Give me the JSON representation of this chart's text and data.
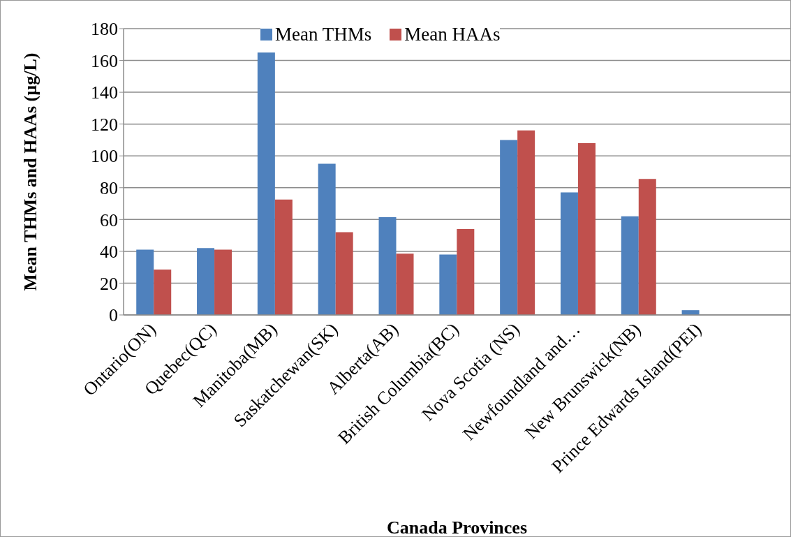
{
  "chart_data": {
    "type": "bar",
    "xlabel": "Canada Provinces",
    "ylabel": "Mean THMs and HAAs (µg/L)",
    "categories": [
      "Ontario(ON)",
      "Quebec(QC)",
      "Manitoba(MB)",
      "Saskatchewan(SK)",
      "Alberta(AB)",
      "British Columbia(BC)",
      "Nova Scotia (NS)",
      "Newfoundland and…",
      "New Brunswick(NB)",
      "Prince Edwards Island(PEI)",
      null
    ],
    "series": [
      {
        "name": "Mean THMs",
        "color": "#4f81bd",
        "values": [
          41,
          42,
          165,
          95,
          61.5,
          38,
          110,
          77,
          62,
          3,
          null
        ]
      },
      {
        "name": "Mean HAAs",
        "color": "#c0504d",
        "values": [
          28.5,
          41,
          72.5,
          52,
          38.5,
          54,
          116,
          108,
          85.5,
          null,
          null
        ]
      }
    ],
    "ylim": [
      0,
      180
    ],
    "yticks": [
      0,
      20,
      40,
      60,
      80,
      100,
      120,
      140,
      160,
      180
    ],
    "grid": "y",
    "legend": "top"
  }
}
